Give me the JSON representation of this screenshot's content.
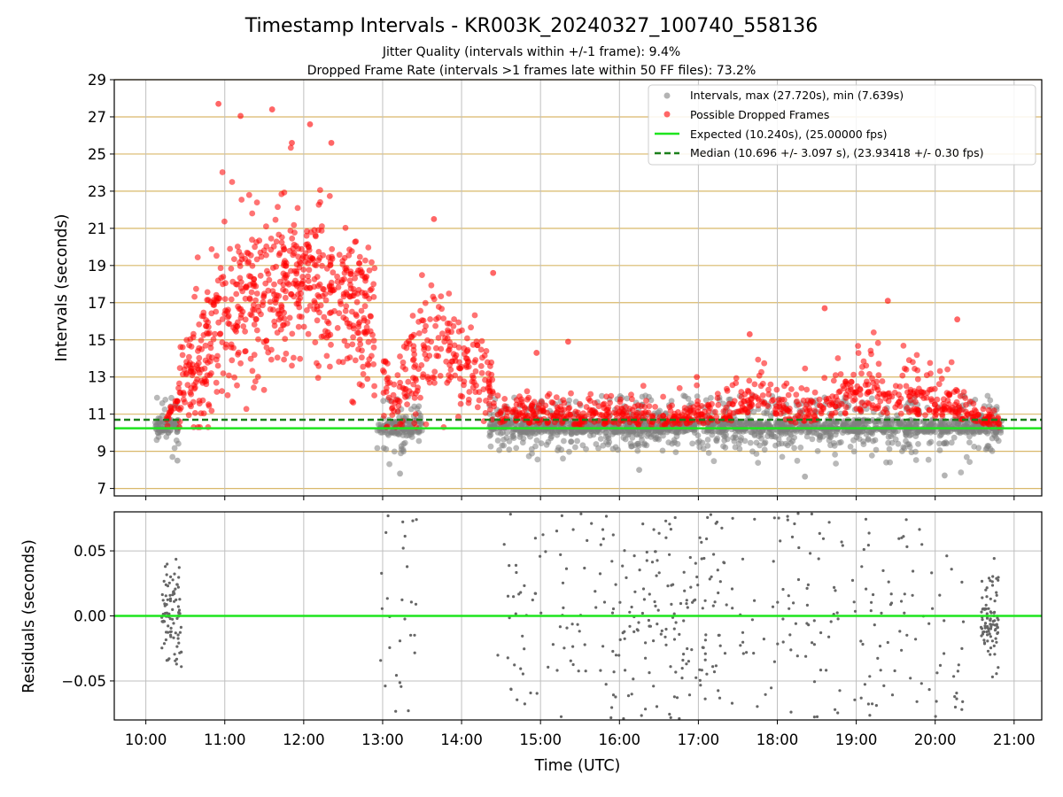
{
  "title": "Timestamp Intervals - KR003K_20240327_100740_558136",
  "subtitle_1": "Jitter Quality (intervals within +/-1 frame): 9.4%",
  "subtitle_2": "Dropped Frame Rate (intervals >1 frames late within 50 FF files): 73.2%",
  "colors": {
    "interval": "#808080",
    "dropped": "#ff0000",
    "expected": "#1ee51e",
    "median": "#1a7f1a",
    "hgrid": "#d9b86a",
    "vgrid": "#bfbfbf"
  },
  "chart_data": [
    {
      "type": "scatter",
      "panel": "top",
      "ylabel": "Intervals (seconds)",
      "xlabel": "",
      "ylim": [
        6.6,
        29
      ],
      "yticks": [
        "7",
        "9",
        "11",
        "13",
        "15",
        "17",
        "19",
        "21",
        "23",
        "25",
        "27",
        "29"
      ],
      "hgrid": true,
      "vgrid": true,
      "legend_placement": "top-right",
      "legend": [
        {
          "kind": "dot",
          "color": "interval",
          "label": "Intervals, max (27.720s), min (7.639s)"
        },
        {
          "kind": "dot",
          "color": "dropped",
          "label": "Possible Dropped Frames"
        },
        {
          "kind": "line",
          "color": "expected",
          "label": "Expected (10.240s), (25.00000 fps)"
        },
        {
          "kind": "dash",
          "color": "median",
          "label": "Median (10.696 +/- 3.097 s), (23.93418 +/- 0.30 fps)"
        }
      ],
      "reference_lines": {
        "expected": 10.24,
        "median": 10.696
      },
      "x_range_hours": [
        9.6,
        21.35
      ],
      "dropped_profile": {
        "hours": [
          10.25,
          10.6,
          11.0,
          11.5,
          12.0,
          12.5,
          12.9,
          13.1,
          13.4,
          13.7,
          14.0,
          14.3,
          14.45,
          15.0,
          15.5,
          16.0,
          16.5,
          17.0,
          17.5,
          17.8,
          18.2,
          18.6,
          19.0,
          19.5,
          20.0,
          20.4,
          20.75
        ],
        "center": [
          10.6,
          13.5,
          16.5,
          17.8,
          18.6,
          17.5,
          15.5,
          10.9,
          13.5,
          15.2,
          13.3,
          12.9,
          11.0,
          11.0,
          10.8,
          10.9,
          10.8,
          10.9,
          11.2,
          12.2,
          10.9,
          11.3,
          11.8,
          11.6,
          11.4,
          11.2,
          10.7
        ],
        "spread": [
          0.4,
          2.2,
          2.7,
          2.6,
          2.6,
          2.4,
          2.1,
          0.8,
          2.0,
          2.1,
          1.5,
          1.3,
          0.6,
          0.8,
          0.7,
          0.7,
          0.7,
          0.6,
          1.0,
          1.4,
          0.7,
          1.2,
          1.6,
          1.5,
          1.4,
          1.1,
          0.4
        ]
      },
      "dropped_extremes": [
        {
          "x": 10.92,
          "y": 27.7
        },
        {
          "x": 11.2,
          "y": 27.05
        },
        {
          "x": 11.6,
          "y": 27.4
        },
        {
          "x": 12.08,
          "y": 26.6
        },
        {
          "x": 11.85,
          "y": 25.6
        },
        {
          "x": 12.35,
          "y": 25.6
        },
        {
          "x": 13.65,
          "y": 21.5
        },
        {
          "x": 14.4,
          "y": 18.6
        },
        {
          "x": 16.98,
          "y": 13.0
        },
        {
          "x": 17.65,
          "y": 15.3
        },
        {
          "x": 18.6,
          "y": 16.7
        },
        {
          "x": 19.4,
          "y": 17.1
        },
        {
          "x": 20.28,
          "y": 16.1
        },
        {
          "x": 15.35,
          "y": 14.9
        },
        {
          "x": 14.95,
          "y": 14.3
        }
      ],
      "interval_segments": [
        [
          10.12,
          10.42
        ],
        [
          12.93,
          13.5
        ],
        [
          14.35,
          20.85
        ]
      ],
      "interval_band": [
        10.0,
        10.7
      ],
      "interval_min_points": [
        {
          "x": 10.4,
          "y": 8.5
        },
        {
          "x": 13.22,
          "y": 7.8
        },
        {
          "x": 20.12,
          "y": 7.7
        },
        {
          "x": 18.35,
          "y": 7.64
        },
        {
          "x": 16.25,
          "y": 8.0
        }
      ]
    },
    {
      "type": "scatter",
      "panel": "bottom",
      "ylabel": "Residuals (seconds)",
      "xlabel": "Time (UTC)",
      "ylim": [
        -0.08,
        0.08
      ],
      "yticks": [
        {
          "value": 0.05,
          "label": "0.05"
        },
        {
          "value": 0.0,
          "label": "0.00"
        },
        {
          "value": -0.05,
          "label": "−0.05"
        }
      ],
      "xticks": [
        {
          "hour": 10,
          "label": "10:00"
        },
        {
          "hour": 11,
          "label": "11:00"
        },
        {
          "hour": 12,
          "label": "12:00"
        },
        {
          "hour": 13,
          "label": "13:00"
        },
        {
          "hour": 14,
          "label": "14:00"
        },
        {
          "hour": 15,
          "label": "15:00"
        },
        {
          "hour": 16,
          "label": "16:00"
        },
        {
          "hour": 17,
          "label": "17:00"
        },
        {
          "hour": 18,
          "label": "18:00"
        },
        {
          "hour": 19,
          "label": "19:00"
        },
        {
          "hour": 20,
          "label": "20:00"
        },
        {
          "hour": 21,
          "label": "21:00"
        }
      ],
      "zero_line": 0.0,
      "residual_clusters": [
        {
          "range": [
            10.2,
            10.45
          ],
          "sd": 0.018
        },
        {
          "range": [
            20.58,
            20.8
          ],
          "sd": 0.018
        }
      ],
      "residual_sparse": [
        [
          12.95,
          13.45
        ],
        [
          14.45,
          20.4
        ]
      ]
    }
  ]
}
